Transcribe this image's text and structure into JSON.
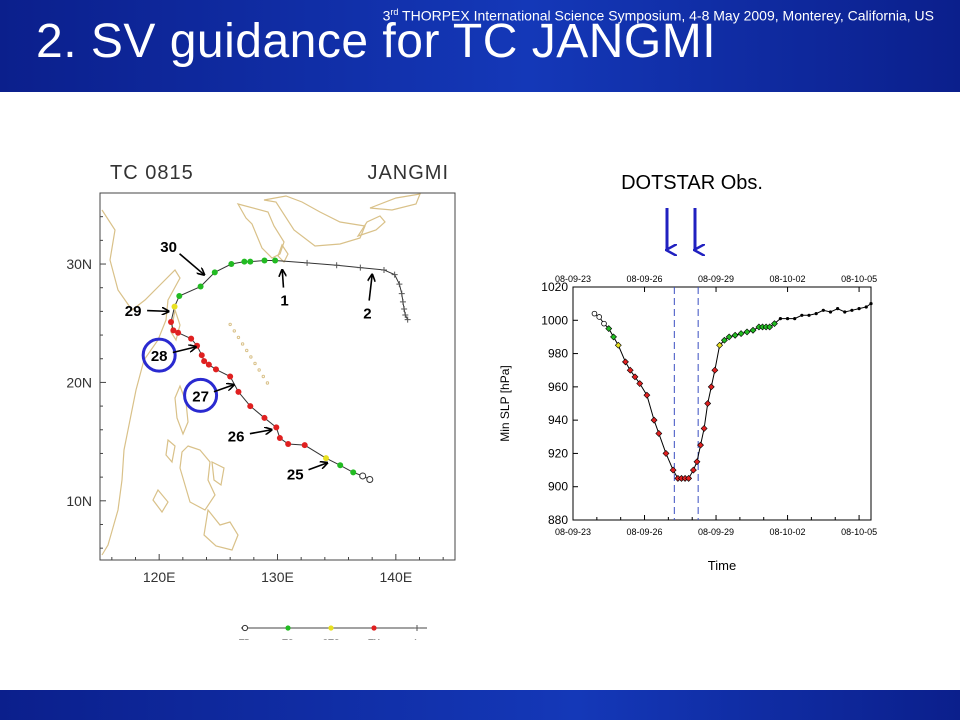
{
  "slide": {
    "title": "2. SV guidance for TC JANGMI",
    "footer_sup": "rd",
    "footer_pre": "3",
    "footer_post": " THORPEX International Science Symposium, 4-8 May 2009, Monterey, California, US",
    "dotstar_label": "DOTSTAR Obs."
  },
  "colors": {
    "title_bar": "#1438b8",
    "td": "#ffffff",
    "ts": "#22bb22",
    "sts": "#e8e020",
    "ty": "#e02020",
    "l": "#555555",
    "arrow": "#2020c0",
    "circle": "#2a2ad0"
  },
  "chart_data": [
    {
      "type": "scatter",
      "title": "TC  0815",
      "subtitle": "JANGMI",
      "x_ticks": [
        "120E",
        "130E",
        "140E"
      ],
      "y_ticks": [
        "10N",
        "20N",
        "30N"
      ],
      "xlim": [
        115,
        145
      ],
      "ylim": [
        5,
        36
      ],
      "legend": [
        "TD",
        "TS",
        "STS",
        "TY",
        "L"
      ],
      "legend_position": "bottom",
      "track": [
        {
          "lon": 137.8,
          "lat": 11.8,
          "cat": "TD"
        },
        {
          "lon": 137.2,
          "lat": 12.1,
          "cat": "TD"
        },
        {
          "lon": 136.4,
          "lat": 12.4,
          "cat": "TS"
        },
        {
          "lon": 135.3,
          "lat": 13.0,
          "cat": "TS"
        },
        {
          "lon": 134.1,
          "lat": 13.6,
          "cat": "STS"
        },
        {
          "lon": 132.3,
          "lat": 14.7,
          "cat": "TY"
        },
        {
          "lon": 130.9,
          "lat": 14.8,
          "cat": "TY"
        },
        {
          "lon": 130.2,
          "lat": 15.3,
          "cat": "TY"
        },
        {
          "lon": 129.9,
          "lat": 16.2,
          "cat": "TY"
        },
        {
          "lon": 128.9,
          "lat": 17.0,
          "cat": "TY"
        },
        {
          "lon": 127.7,
          "lat": 18.0,
          "cat": "TY"
        },
        {
          "lon": 126.7,
          "lat": 19.2,
          "cat": "TY"
        },
        {
          "lon": 126.0,
          "lat": 20.5,
          "cat": "TY"
        },
        {
          "lon": 124.8,
          "lat": 21.1,
          "cat": "TY"
        },
        {
          "lon": 124.2,
          "lat": 21.5,
          "cat": "TY"
        },
        {
          "lon": 123.8,
          "lat": 21.8,
          "cat": "TY"
        },
        {
          "lon": 123.6,
          "lat": 22.3,
          "cat": "TY"
        },
        {
          "lon": 123.2,
          "lat": 23.1,
          "cat": "TY"
        },
        {
          "lon": 122.7,
          "lat": 23.7,
          "cat": "TY"
        },
        {
          "lon": 121.6,
          "lat": 24.2,
          "cat": "TY"
        },
        {
          "lon": 121.2,
          "lat": 24.4,
          "cat": "TY"
        },
        {
          "lon": 121.0,
          "lat": 25.1,
          "cat": "TY"
        },
        {
          "lon": 121.3,
          "lat": 26.4,
          "cat": "STS"
        },
        {
          "lon": 121.7,
          "lat": 27.3,
          "cat": "TS"
        },
        {
          "lon": 123.5,
          "lat": 28.1,
          "cat": "TS"
        },
        {
          "lon": 124.7,
          "lat": 29.3,
          "cat": "TS"
        },
        {
          "lon": 126.1,
          "lat": 30.0,
          "cat": "TS"
        },
        {
          "lon": 127.2,
          "lat": 30.2,
          "cat": "TS"
        },
        {
          "lon": 127.7,
          "lat": 30.2,
          "cat": "TS"
        },
        {
          "lon": 128.9,
          "lat": 30.3,
          "cat": "TS"
        },
        {
          "lon": 129.8,
          "lat": 30.3,
          "cat": "TS"
        },
        {
          "lon": 132.5,
          "lat": 30.1,
          "cat": "L"
        },
        {
          "lon": 135.0,
          "lat": 29.9,
          "cat": "L"
        },
        {
          "lon": 137.0,
          "lat": 29.7,
          "cat": "L"
        },
        {
          "lon": 139.0,
          "lat": 29.5,
          "cat": "L"
        },
        {
          "lon": 139.9,
          "lat": 29.1,
          "cat": "L"
        },
        {
          "lon": 140.3,
          "lat": 28.3,
          "cat": "L"
        },
        {
          "lon": 140.5,
          "lat": 27.5,
          "cat": "L"
        },
        {
          "lon": 140.6,
          "lat": 26.8,
          "cat": "L"
        },
        {
          "lon": 140.7,
          "lat": 26.2,
          "cat": "L"
        },
        {
          "lon": 140.8,
          "lat": 25.7,
          "cat": "L"
        },
        {
          "lon": 141.0,
          "lat": 25.3,
          "cat": "L"
        }
      ],
      "annotations": [
        {
          "text": "25",
          "lon": 131.5,
          "lat": 11.8,
          "to_lon": 134.2,
          "to_lat": 13.2,
          "circled": false
        },
        {
          "text": "26",
          "lon": 126.5,
          "lat": 15.0,
          "to_lon": 129.5,
          "to_lat": 16.0,
          "circled": false
        },
        {
          "text": "27",
          "lon": 123.5,
          "lat": 18.4,
          "to_lon": 126.3,
          "to_lat": 19.8,
          "circled": true
        },
        {
          "text": "28",
          "lon": 120.0,
          "lat": 21.8,
          "to_lon": 123.1,
          "to_lat": 23.0,
          "circled": true
        },
        {
          "text": "29",
          "lon": 117.8,
          "lat": 25.6,
          "to_lon": 120.8,
          "to_lat": 26.0,
          "circled": false
        },
        {
          "text": "30",
          "lon": 120.8,
          "lat": 31.0,
          "to_lon": 123.8,
          "to_lat": 29.1,
          "circled": false
        },
        {
          "text": "1",
          "lon": 130.6,
          "lat": 26.5,
          "to_lon": 130.4,
          "to_lat": 29.5,
          "circled": false
        },
        {
          "text": "2",
          "lon": 137.6,
          "lat": 25.4,
          "to_lon": 138.0,
          "to_lat": 29.1,
          "circled": false
        }
      ]
    },
    {
      "type": "line",
      "xlabel": "Time",
      "ylabel": "Min SLP [hPa]",
      "x_ticks": [
        "08-09-23",
        "08-09-26",
        "08-09-29",
        "08-10-02",
        "08-10-05"
      ],
      "ylim": [
        880,
        1020
      ],
      "y_ticks": [
        880,
        900,
        920,
        940,
        960,
        980,
        1000,
        1020
      ],
      "xlim_days": [
        0,
        12.5
      ],
      "grid": false,
      "dotstar_obs_days": [
        4.25,
        5.25
      ],
      "points": [
        {
          "day": 0.9,
          "p": 1004,
          "cat": "TD"
        },
        {
          "day": 1.1,
          "p": 1002,
          "cat": "TD"
        },
        {
          "day": 1.3,
          "p": 998,
          "cat": "TD"
        },
        {
          "day": 1.5,
          "p": 995,
          "cat": "TS"
        },
        {
          "day": 1.7,
          "p": 990,
          "cat": "TS"
        },
        {
          "day": 1.9,
          "p": 985,
          "cat": "STS"
        },
        {
          "day": 2.2,
          "p": 975,
          "cat": "TY"
        },
        {
          "day": 2.4,
          "p": 970,
          "cat": "TY"
        },
        {
          "day": 2.6,
          "p": 966,
          "cat": "TY"
        },
        {
          "day": 2.8,
          "p": 962,
          "cat": "TY"
        },
        {
          "day": 3.1,
          "p": 955,
          "cat": "TY"
        },
        {
          "day": 3.4,
          "p": 940,
          "cat": "TY"
        },
        {
          "day": 3.6,
          "p": 932,
          "cat": "TY"
        },
        {
          "day": 3.9,
          "p": 920,
          "cat": "TY"
        },
        {
          "day": 4.2,
          "p": 910,
          "cat": "TY"
        },
        {
          "day": 4.4,
          "p": 905,
          "cat": "TY"
        },
        {
          "day": 4.55,
          "p": 905,
          "cat": "TY"
        },
        {
          "day": 4.7,
          "p": 905,
          "cat": "TY"
        },
        {
          "day": 4.85,
          "p": 905,
          "cat": "TY"
        },
        {
          "day": 5.05,
          "p": 910,
          "cat": "TY"
        },
        {
          "day": 5.2,
          "p": 915,
          "cat": "TY"
        },
        {
          "day": 5.35,
          "p": 925,
          "cat": "TY"
        },
        {
          "day": 5.5,
          "p": 935,
          "cat": "TY"
        },
        {
          "day": 5.65,
          "p": 950,
          "cat": "TY"
        },
        {
          "day": 5.8,
          "p": 960,
          "cat": "TY"
        },
        {
          "day": 5.95,
          "p": 970,
          "cat": "TY"
        },
        {
          "day": 6.15,
          "p": 985,
          "cat": "STS"
        },
        {
          "day": 6.35,
          "p": 988,
          "cat": "TS"
        },
        {
          "day": 6.55,
          "p": 990,
          "cat": "TS"
        },
        {
          "day": 6.8,
          "p": 991,
          "cat": "TS"
        },
        {
          "day": 7.05,
          "p": 992,
          "cat": "TS"
        },
        {
          "day": 7.3,
          "p": 993,
          "cat": "TS"
        },
        {
          "day": 7.55,
          "p": 994,
          "cat": "TS"
        },
        {
          "day": 7.8,
          "p": 996,
          "cat": "TS"
        },
        {
          "day": 7.95,
          "p": 996,
          "cat": "TS"
        },
        {
          "day": 8.1,
          "p": 996,
          "cat": "TS"
        },
        {
          "day": 8.25,
          "p": 996,
          "cat": "TS"
        },
        {
          "day": 8.45,
          "p": 998,
          "cat": "TS"
        },
        {
          "day": 8.7,
          "p": 1001,
          "cat": "L"
        },
        {
          "day": 9.0,
          "p": 1001,
          "cat": "L"
        },
        {
          "day": 9.3,
          "p": 1001,
          "cat": "L"
        },
        {
          "day": 9.6,
          "p": 1003,
          "cat": "L"
        },
        {
          "day": 9.9,
          "p": 1003,
          "cat": "L"
        },
        {
          "day": 10.2,
          "p": 1004,
          "cat": "L"
        },
        {
          "day": 10.5,
          "p": 1006,
          "cat": "L"
        },
        {
          "day": 10.8,
          "p": 1005,
          "cat": "L"
        },
        {
          "day": 11.1,
          "p": 1007,
          "cat": "L"
        },
        {
          "day": 11.4,
          "p": 1005,
          "cat": "L"
        },
        {
          "day": 11.7,
          "p": 1006,
          "cat": "L"
        },
        {
          "day": 12.0,
          "p": 1007,
          "cat": "L"
        },
        {
          "day": 12.3,
          "p": 1008,
          "cat": "L"
        },
        {
          "day": 12.5,
          "p": 1010,
          "cat": "L"
        }
      ]
    }
  ]
}
